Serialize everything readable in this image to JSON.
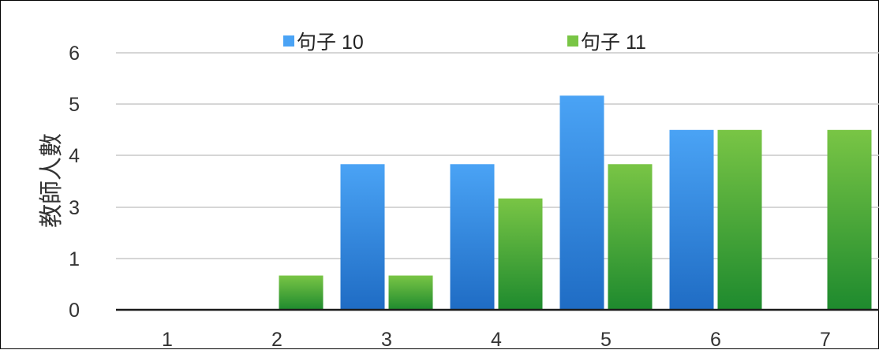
{
  "chart_data": {
    "type": "bar",
    "categories": [
      "1",
      "2",
      "3",
      "4",
      "5",
      "6",
      "7"
    ],
    "series": [
      {
        "name": "句子 10",
        "values": [
          0,
          0,
          3.4,
          3.4,
          5,
          4.2,
          0
        ],
        "color": "#4aa3f5",
        "color_dark": "#1f6cc4"
      },
      {
        "name": "句子 11",
        "values": [
          0,
          0.8,
          0.8,
          2.6,
          3.4,
          4.2,
          4.2
        ],
        "color": "#79c545",
        "color_dark": "#1e8a2e"
      }
    ],
    "y_ticks": [
      "0",
      "1",
      "3",
      "4",
      "5",
      "6"
    ],
    "ylabel": "教師人數",
    "xlabel": "",
    "grid": true,
    "legend_position": "top-center"
  }
}
